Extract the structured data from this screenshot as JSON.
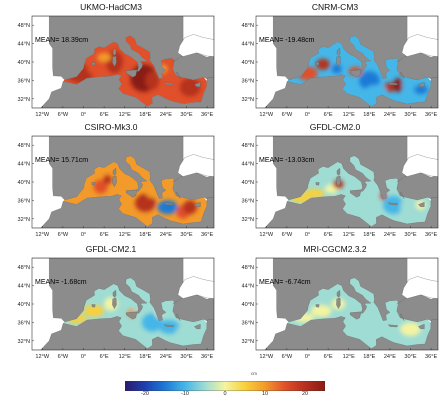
{
  "panels": [
    {
      "title": "UKMO-HadCM3",
      "mean": "MEAN= 18.39cm",
      "anomaly": 18.39
    },
    {
      "title": "CNRM-CM3",
      "mean": "MEAN= -19.48cm",
      "anomaly": -19.48
    },
    {
      "title": "CSIRO-Mk3.0",
      "mean": "MEAN= 15.71cm",
      "anomaly": 15.71
    },
    {
      "title": "GFDL-CM2.0",
      "mean": "MEAN= -13.03cm",
      "anomaly": -13.03
    },
    {
      "title": "GFDL-CM2.1",
      "mean": "MEAN= -1.68cm",
      "anomaly": -1.68
    },
    {
      "title": "MRI-CGCM2.3.2",
      "mean": "MEAN= -6.74cm",
      "anomaly": -6.74
    }
  ],
  "lat_labels": [
    "48°N",
    "44°N",
    "40°N",
    "36°N",
    "32°N"
  ],
  "lon_labels": [
    "12°W",
    "6°W",
    "0°",
    "6°E",
    "12°E",
    "18°E",
    "24°E",
    "30°E",
    "36°E"
  ],
  "colorbar": {
    "unit": "cm",
    "min": -25,
    "max": 25,
    "ticks": [
      "-20",
      "-10",
      "0",
      "10",
      "20"
    ],
    "tick_values": [
      -20,
      -10,
      0,
      10,
      20
    ],
    "colors": [
      "#2a1a6e",
      "#1f3fb0",
      "#1e7ad6",
      "#45b6e8",
      "#9fdcd4",
      "#f4f4a0",
      "#f8d03c",
      "#f29a2a",
      "#e0502a",
      "#b5301e",
      "#8a1c14"
    ]
  }
}
